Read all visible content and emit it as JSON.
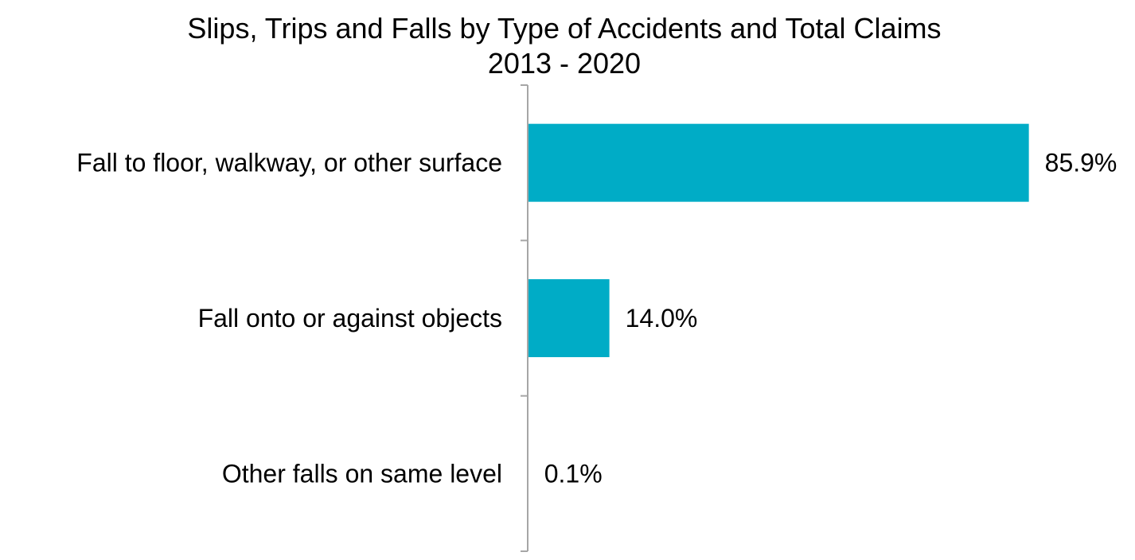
{
  "chart_data": {
    "type": "bar",
    "orientation": "horizontal",
    "title": "Slips, Trips and Falls by Type of Accidents and Total Claims",
    "subtitle": "2013 - 2020",
    "xlabel": "",
    "ylabel": "",
    "categories": [
      "Fall to floor, walkway, or other surface",
      "Fall onto or against objects",
      "Other falls on same level"
    ],
    "values": [
      85.9,
      14.0,
      0.1
    ],
    "value_labels": [
      "85.9%",
      "14.0%",
      "0.1%"
    ],
    "unit": "%",
    "xlim": [
      0,
      100
    ],
    "grid": false,
    "legend": "none",
    "colors": {
      "bar": "#00ACC6",
      "axis": "#A6A6A6",
      "text": "#000000"
    }
  }
}
